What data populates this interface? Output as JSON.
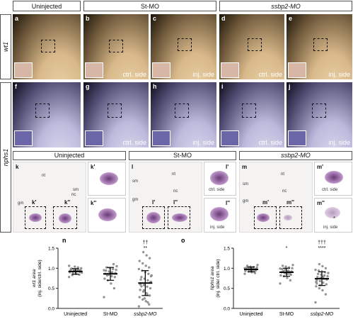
{
  "headers": {
    "uninjected": "Uninjected",
    "st_mo": "St-MO",
    "ssbp2_mo": "ssbp2-MO"
  },
  "row_labels": {
    "wt1": "wt1",
    "nphs1": "nphs1"
  },
  "panels_top": [
    {
      "letter": "a",
      "side": ""
    },
    {
      "letter": "b",
      "side": "ctrl. side"
    },
    {
      "letter": "c",
      "side": "inj. side"
    },
    {
      "letter": "d",
      "side": "ctrl. side"
    },
    {
      "letter": "e",
      "side": "inj. side"
    }
  ],
  "panels_mid": [
    {
      "letter": "f",
      "side": ""
    },
    {
      "letter": "g",
      "side": "ctrl. side"
    },
    {
      "letter": "h",
      "side": "inj. side"
    },
    {
      "letter": "i",
      "side": "ctrl. side"
    },
    {
      "letter": "j",
      "side": "inj. side"
    }
  ],
  "section_headers": {
    "k": "Uninjected",
    "l": "St-MO",
    "m": "ssbp2-MO"
  },
  "sections": {
    "k": {
      "letter": "k",
      "nt": "nt",
      "sm": "sm",
      "nc": "nc",
      "gm": "gm",
      "b1": "k'",
      "b2": "k''",
      "s1": "k'",
      "s2": "k''"
    },
    "l": {
      "letter": "l",
      "nt": "nt",
      "sm": "sm",
      "nc": "nc",
      "gm": "gm",
      "b1": "l'",
      "b2": "l''",
      "s1": "l'",
      "s1_side": "ctrl. side",
      "s2": "l''",
      "s2_side": "inj. side"
    },
    "m": {
      "letter": "m",
      "nt": "nt",
      "sm": "sm",
      "nc": "nc",
      "gm": "gm",
      "b1": "m'",
      "b2": "m''",
      "s1": "m'",
      "s1_side": "ctrl. side",
      "s2": "m''",
      "s2_side": "inj. side",
      "star": "*"
    }
  },
  "chart_data": [
    {
      "panel": "n",
      "type": "scatter",
      "ylabel_line1": "wt1 area",
      "ylabel_line2": "(inj. side/ctrl. side)",
      "categories": [
        "Uninjected",
        "St-MO",
        "ssbp2-MO"
      ],
      "means": [
        0.92,
        0.86,
        0.63
      ],
      "sd": [
        0.07,
        0.16,
        0.31
      ],
      "significance": [
        "",
        "",
        "**"
      ],
      "significance2": [
        "",
        "",
        "††"
      ],
      "ylim": [
        0,
        1.5
      ],
      "points": [
        [
          0.78,
          0.84,
          0.86,
          0.88,
          0.9,
          0.91,
          0.92,
          0.93,
          0.94,
          0.95,
          0.96,
          0.97,
          0.98,
          1.0,
          1.02,
          1.04,
          0.99,
          0.89,
          0.95,
          0.92,
          0.83,
          1.06
        ],
        [
          0.28,
          0.5,
          0.62,
          0.7,
          0.74,
          0.78,
          0.8,
          0.84,
          0.86,
          0.88,
          0.9,
          0.92,
          0.94,
          0.96,
          0.98,
          1.0,
          1.02,
          1.05,
          1.1,
          0.88,
          0.82,
          0.95
        ],
        [
          0.05,
          0.1,
          0.18,
          0.22,
          0.28,
          0.32,
          0.38,
          0.42,
          0.46,
          0.5,
          0.54,
          0.58,
          0.62,
          0.66,
          0.7,
          0.74,
          0.78,
          0.82,
          0.86,
          0.9,
          0.94,
          0.98,
          1.02,
          1.06,
          1.12,
          1.18,
          1.25,
          1.32,
          1.4,
          0.6,
          0.65,
          0.35,
          0.45,
          0.72,
          0.8,
          0.15,
          0.25,
          0.55
        ]
      ]
    },
    {
      "panel": "o",
      "type": "scatter",
      "ylabel_line1": "Nphs1 area",
      "ylabel_line2": "(inj. side/ ctrl. side)",
      "categories": [
        "Uninjected",
        "St-MO",
        "ssbp2-MO"
      ],
      "means": [
        0.97,
        0.9,
        0.74
      ],
      "sd": [
        0.06,
        0.1,
        0.17
      ],
      "significance": [
        "",
        "*",
        "****"
      ],
      "significance2": [
        "",
        "",
        "†††"
      ],
      "ylim": [
        0,
        1.5
      ],
      "points": [
        [
          0.86,
          0.88,
          0.9,
          0.92,
          0.93,
          0.94,
          0.95,
          0.96,
          0.97,
          0.98,
          0.99,
          1.0,
          1.01,
          1.02,
          1.03,
          1.04,
          1.06,
          1.08,
          0.97,
          0.95,
          0.99,
          1.0,
          0.94,
          0.98
        ],
        [
          0.62,
          0.7,
          0.76,
          0.8,
          0.82,
          0.84,
          0.86,
          0.88,
          0.9,
          0.92,
          0.94,
          0.96,
          0.98,
          1.0,
          1.02,
          1.04,
          1.06,
          1.08,
          0.9,
          0.87,
          0.93,
          0.99,
          0.85,
          0.91
        ],
        [
          0.15,
          0.35,
          0.45,
          0.5,
          0.55,
          0.6,
          0.64,
          0.68,
          0.7,
          0.72,
          0.74,
          0.76,
          0.78,
          0.8,
          0.82,
          0.84,
          0.86,
          0.88,
          0.9,
          0.92,
          0.94,
          0.96,
          1.0,
          1.05,
          1.1,
          0.66,
          0.73,
          0.79,
          0.58,
          0.62
        ]
      ]
    }
  ]
}
